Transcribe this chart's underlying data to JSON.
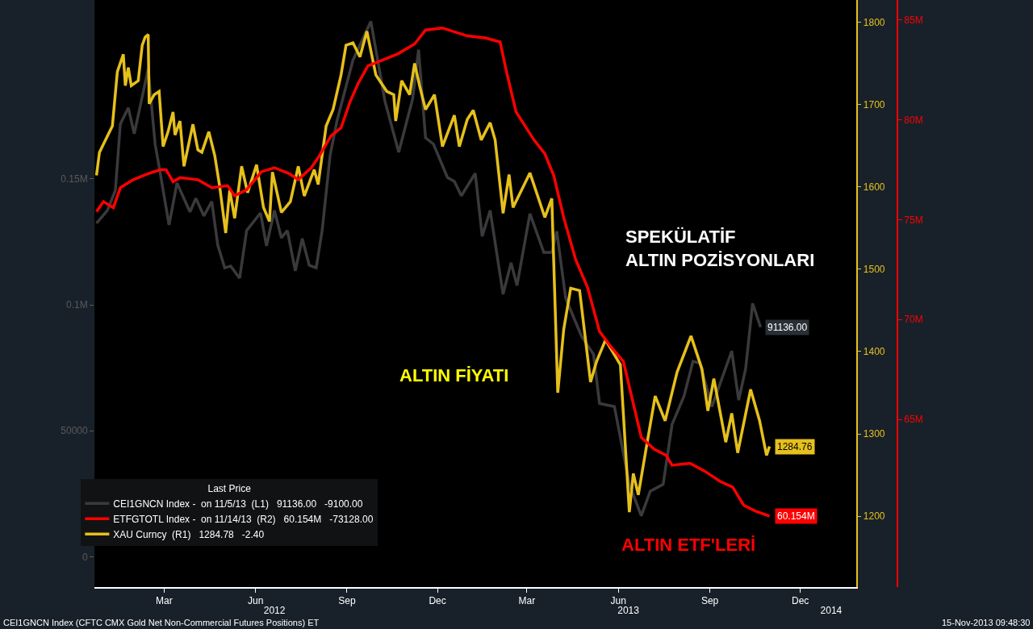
{
  "chart_data": {
    "type": "line",
    "legend": "bottom left",
    "legend_title": "Last Price",
    "grid": false,
    "xlim": [
      "2012-01-05",
      "2014-02-09"
    ],
    "xticks": [
      {
        "value": "2012-03-15",
        "label": "Mar"
      },
      {
        "value": "2012-06-15",
        "label": "Jun"
      },
      {
        "value": "2012-09-15",
        "label": "Sep"
      },
      {
        "value": "2012-12-15",
        "label": "Dec"
      },
      {
        "value": "2013-03-15",
        "label": "Mar"
      },
      {
        "value": "2013-06-15",
        "label": "Jun"
      },
      {
        "value": "2013-09-15",
        "label": "Sep"
      },
      {
        "value": "2013-12-15",
        "label": "Dec"
      }
    ],
    "x2lim": [
      "2012-01-05",
      "2014-02-09"
    ],
    "x2ticks": [
      {
        "value": "2012-07-04",
        "label": "2012"
      },
      {
        "value": "2013-06-25",
        "label": "2013"
      },
      {
        "value": "2014-01-15",
        "label": "2014"
      }
    ],
    "ylim": [
      -12000,
      221000
    ],
    "yticks": [
      0,
      50000,
      {
        "value": 100000,
        "label": "0.1M"
      },
      {
        "value": 150000,
        "label": "0.15M"
      }
    ],
    "y2lim": [
      1114,
      1827
    ],
    "y2ticks": [
      1200,
      1300,
      1400,
      1500,
      1600,
      1700,
      1800
    ],
    "y3lim": [
      56.6,
      86.0
    ],
    "y3ticks": [
      {
        "value": 65,
        "label": "65M"
      },
      {
        "value": 70,
        "label": "70M"
      },
      {
        "value": 75,
        "label": "75M"
      },
      {
        "value": 80,
        "label": "80M"
      },
      {
        "value": 85,
        "label": "85M"
      }
    ],
    "series": [
      {
        "name": "CEI1GNCN Index -  on 11/5/13  (L1)   91136.00   -9100.00",
        "color": "#3a3a3d",
        "axis": "y",
        "x": [
          "2012-01-07",
          "2012-01-18",
          "2012-01-26",
          "2012-01-31",
          "2012-02-08",
          "2012-02-14",
          "2012-02-28",
          "2012-03-06",
          "2012-03-11",
          "2012-03-20",
          "2012-03-28",
          "2012-04-10",
          "2012-04-16",
          "2012-04-24",
          "2012-05-02",
          "2012-05-08",
          "2012-05-15",
          "2012-05-21",
          "2012-05-30",
          "2012-06-06",
          "2012-06-20",
          "2012-06-26",
          "2012-07-04",
          "2012-07-11",
          "2012-07-17",
          "2012-07-25",
          "2012-08-01",
          "2012-08-08",
          "2012-08-15",
          "2012-08-21",
          "2012-08-29",
          "2012-09-05",
          "2012-09-21",
          "2012-10-09",
          "2012-10-23",
          "2012-11-06",
          "2012-11-20",
          "2012-11-26",
          "2012-12-03",
          "2012-12-11",
          "2012-12-25",
          "2013-01-01",
          "2013-01-08",
          "2013-01-22",
          "2013-01-29",
          "2013-02-06",
          "2013-02-19",
          "2013-02-27",
          "2013-03-05",
          "2013-03-18",
          "2013-04-01",
          "2013-04-09",
          "2013-04-14",
          "2013-04-23",
          "2013-05-09",
          "2013-05-21",
          "2013-05-27",
          "2013-06-11",
          "2013-06-26",
          "2013-07-08",
          "2013-07-17",
          "2013-07-30",
          "2013-08-08",
          "2013-08-20",
          "2013-08-29",
          "2013-09-05",
          "2013-09-17",
          "2013-10-07",
          "2013-10-14",
          "2013-10-21",
          "2013-10-28",
          "2013-11-05"
        ],
        "values": [
          132400,
          137500,
          145500,
          171800,
          178200,
          167900,
          193600,
          163800,
          152600,
          131700,
          148400,
          136900,
          142300,
          135300,
          141000,
          123700,
          114700,
          115400,
          110600,
          129500,
          136500,
          123400,
          137500,
          126600,
          129500,
          113500,
          126300,
          115700,
          114700,
          129500,
          159300,
          173100,
          197100,
          212500,
          181100,
          160600,
          181700,
          201300,
          166300,
          163800,
          150600,
          149000,
          143300,
          152200,
          127200,
          137500,
          104200,
          116700,
          107700,
          136200,
          120800,
          120800,
          129200,
          102600,
          87500,
          80400,
          60900,
          59600,
          28800,
          16300,
          26000,
          28800,
          52600,
          63800,
          77600,
          76900,
          59600,
          81700,
          62200,
          74700,
          100600,
          91136
        ],
        "value_labels": [
          null,
          null,
          null,
          null,
          null,
          null,
          null,
          null,
          null,
          null,
          null,
          null,
          null,
          null,
          null,
          null,
          null,
          null,
          null,
          null,
          null,
          null,
          null,
          null,
          null,
          null,
          null,
          null,
          null,
          null,
          null,
          null,
          null,
          null,
          null,
          null,
          null,
          null,
          null,
          null,
          null,
          null,
          null,
          null,
          null,
          null,
          null,
          null,
          null,
          null,
          null,
          null,
          null,
          null,
          null,
          null,
          null,
          null,
          null,
          null,
          null,
          null,
          null,
          null,
          null,
          null,
          null,
          null,
          null,
          null,
          null,
          "91136.00"
        ]
      },
      {
        "name": "ETFGTOTL Index -  on 11/14/13  (R2)   60.154M   -73128.00",
        "color": "#ff0000",
        "axis": "y3",
        "x": [
          "2012-01-07",
          "2012-01-14",
          "2012-01-24",
          "2012-01-31",
          "2012-02-13",
          "2012-02-28",
          "2012-03-11",
          "2012-03-17",
          "2012-03-24",
          "2012-03-31",
          "2012-04-18",
          "2012-05-02",
          "2012-05-18",
          "2012-05-25",
          "2012-06-06",
          "2012-06-21",
          "2012-07-04",
          "2012-07-19",
          "2012-07-28",
          "2012-08-10",
          "2012-08-17",
          "2012-08-30",
          "2012-09-09",
          "2012-09-18",
          "2012-09-26",
          "2012-10-06",
          "2012-10-16",
          "2012-11-05",
          "2012-11-22",
          "2012-12-03",
          "2012-12-20",
          "2013-01-14",
          "2013-02-01",
          "2013-02-16",
          "2013-02-22",
          "2013-03-04",
          "2013-03-22",
          "2013-04-02",
          "2013-04-11",
          "2013-04-21",
          "2013-05-03",
          "2013-05-15",
          "2013-05-27",
          "2013-06-08",
          "2013-06-20",
          "2013-06-29",
          "2013-07-08",
          "2013-07-21",
          "2013-08-02",
          "2013-08-08",
          "2013-08-26",
          "2013-09-10",
          "2013-09-25",
          "2013-10-08",
          "2013-10-19",
          "2013-10-31",
          "2013-11-14"
        ],
        "values": [
          75.4,
          75.9,
          75.6,
          76.6,
          77.0,
          77.3,
          77.5,
          77.5,
          76.9,
          77.1,
          77.0,
          76.6,
          76.7,
          76.2,
          76.5,
          77.4,
          77.6,
          77.3,
          77.0,
          77.6,
          78.1,
          79.2,
          79.6,
          80.9,
          81.8,
          82.7,
          82.9,
          83.3,
          83.8,
          84.5,
          84.6,
          84.2,
          84.1,
          83.9,
          82.5,
          80.4,
          79.0,
          78.3,
          77.2,
          75.1,
          73.0,
          71.6,
          69.4,
          68.6,
          67.9,
          66.0,
          64.1,
          63.5,
          63.2,
          62.7,
          62.8,
          62.4,
          61.9,
          61.6,
          60.7,
          60.4,
          60.154
        ],
        "value_labels": [
          null,
          null,
          null,
          null,
          null,
          null,
          null,
          null,
          null,
          null,
          null,
          null,
          null,
          null,
          null,
          null,
          null,
          null,
          null,
          null,
          null,
          null,
          null,
          null,
          null,
          null,
          null,
          null,
          null,
          null,
          null,
          null,
          null,
          null,
          null,
          null,
          null,
          null,
          null,
          null,
          null,
          null,
          null,
          null,
          null,
          null,
          null,
          null,
          null,
          null,
          null,
          null,
          null,
          null,
          null,
          null,
          "60.154M"
        ]
      },
      {
        "name": "XAU Curncy  (R1)   1284.78   -2.40",
        "color": "#e6c01b",
        "axis": "y2",
        "x": [
          "2012-01-07",
          "2012-01-10",
          "2012-01-14",
          "2012-01-23",
          "2012-01-28",
          "2012-02-03",
          "2012-02-05",
          "2012-02-08",
          "2012-02-11",
          "2012-02-18",
          "2012-02-22",
          "2012-02-25",
          "2012-02-28",
          "2012-02-29",
          "2012-03-05",
          "2012-03-10",
          "2012-03-14",
          "2012-03-19",
          "2012-03-24",
          "2012-03-26",
          "2012-03-31",
          "2012-04-04",
          "2012-04-13",
          "2012-04-18",
          "2012-04-22",
          "2012-04-29",
          "2012-05-05",
          "2012-05-10",
          "2012-05-16",
          "2012-05-20",
          "2012-05-25",
          "2012-06-01",
          "2012-06-07",
          "2012-06-16",
          "2012-06-23",
          "2012-06-29",
          "2012-07-02",
          "2012-07-11",
          "2012-07-20",
          "2012-07-28",
          "2012-08-03",
          "2012-08-13",
          "2012-08-17",
          "2012-08-25",
          "2012-09-01",
          "2012-09-09",
          "2012-09-14",
          "2012-09-21",
          "2012-09-28",
          "2012-10-05",
          "2012-10-14",
          "2012-10-25",
          "2012-11-01",
          "2012-11-03",
          "2012-11-09",
          "2012-11-17",
          "2012-11-22",
          "2012-11-27",
          "2012-12-03",
          "2012-12-12",
          "2012-12-20",
          "2013-01-01",
          "2013-01-06",
          "2013-01-14",
          "2013-01-20",
          "2013-01-28",
          "2013-02-06",
          "2013-02-11",
          "2013-02-19",
          "2013-02-25",
          "2013-03-01",
          "2013-03-18",
          "2013-04-02",
          "2013-04-09",
          "2013-04-15",
          "2013-04-21",
          "2013-04-28",
          "2013-05-07",
          "2013-05-18",
          "2013-05-24",
          "2013-06-02",
          "2013-06-17",
          "2013-06-26",
          "2013-06-30",
          "2013-07-05",
          "2013-07-14",
          "2013-07-22",
          "2013-08-01",
          "2013-08-13",
          "2013-08-27",
          "2013-09-07",
          "2013-09-13",
          "2013-09-19",
          "2013-10-01",
          "2013-10-07",
          "2013-10-13",
          "2013-10-26",
          "2013-11-04",
          "2013-11-11",
          "2013-11-14"
        ],
        "values": [
          1614,
          1642,
          1652,
          1674,
          1740,
          1761,
          1723,
          1745,
          1723,
          1729,
          1772,
          1782,
          1785,
          1701,
          1712,
          1716,
          1649,
          1667,
          1691,
          1663,
          1680,
          1625,
          1676,
          1645,
          1642,
          1667,
          1638,
          1600,
          1544,
          1596,
          1562,
          1625,
          1593,
          1627,
          1575,
          1558,
          1618,
          1569,
          1582,
          1625,
          1589,
          1621,
          1603,
          1674,
          1694,
          1736,
          1772,
          1775,
          1758,
          1789,
          1736,
          1716,
          1712,
          1680,
          1729,
          1712,
          1750,
          1723,
          1694,
          1712,
          1649,
          1687,
          1649,
          1682,
          1693,
          1657,
          1678,
          1657,
          1568,
          1615,
          1575,
          1617,
          1563,
          1586,
          1350,
          1427,
          1477,
          1474,
          1363,
          1388,
          1414,
          1384,
          1205,
          1252,
          1226,
          1290,
          1346,
          1316,
          1375,
          1419,
          1379,
          1328,
          1367,
          1290,
          1325,
          1277,
          1354,
          1316,
          1274,
          1284.76
        ],
        "value_labels": [
          null,
          null,
          null,
          null,
          null,
          null,
          null,
          null,
          null,
          null,
          null,
          null,
          null,
          null,
          null,
          null,
          null,
          null,
          null,
          null,
          null,
          null,
          null,
          null,
          null,
          null,
          null,
          null,
          null,
          null,
          null,
          null,
          null,
          null,
          null,
          null,
          null,
          null,
          null,
          null,
          null,
          null,
          null,
          null,
          null,
          null,
          null,
          null,
          null,
          null,
          null,
          null,
          null,
          null,
          null,
          null,
          null,
          null,
          null,
          null,
          null,
          null,
          null,
          null,
          null,
          null,
          null,
          null,
          null,
          null,
          null,
          null,
          null,
          null,
          null,
          null,
          null,
          null,
          null,
          null,
          null,
          null,
          null,
          null,
          null,
          null,
          null,
          null,
          null,
          null,
          null,
          null,
          null,
          null,
          null,
          null,
          null,
          null,
          null,
          "1284.76"
        ]
      }
    ],
    "annotations": [
      "ALTIN FİYATI",
      "SPEKÜLATİF\nALTIN POZİSYONLARI",
      "ALTIN ETF'LERİ",
      "CEI1GNCN Index (CFTC CMX Gold Net Non-Commercial Futures Positions) ET",
      "15-Nov-2013 09:48:30"
    ]
  }
}
